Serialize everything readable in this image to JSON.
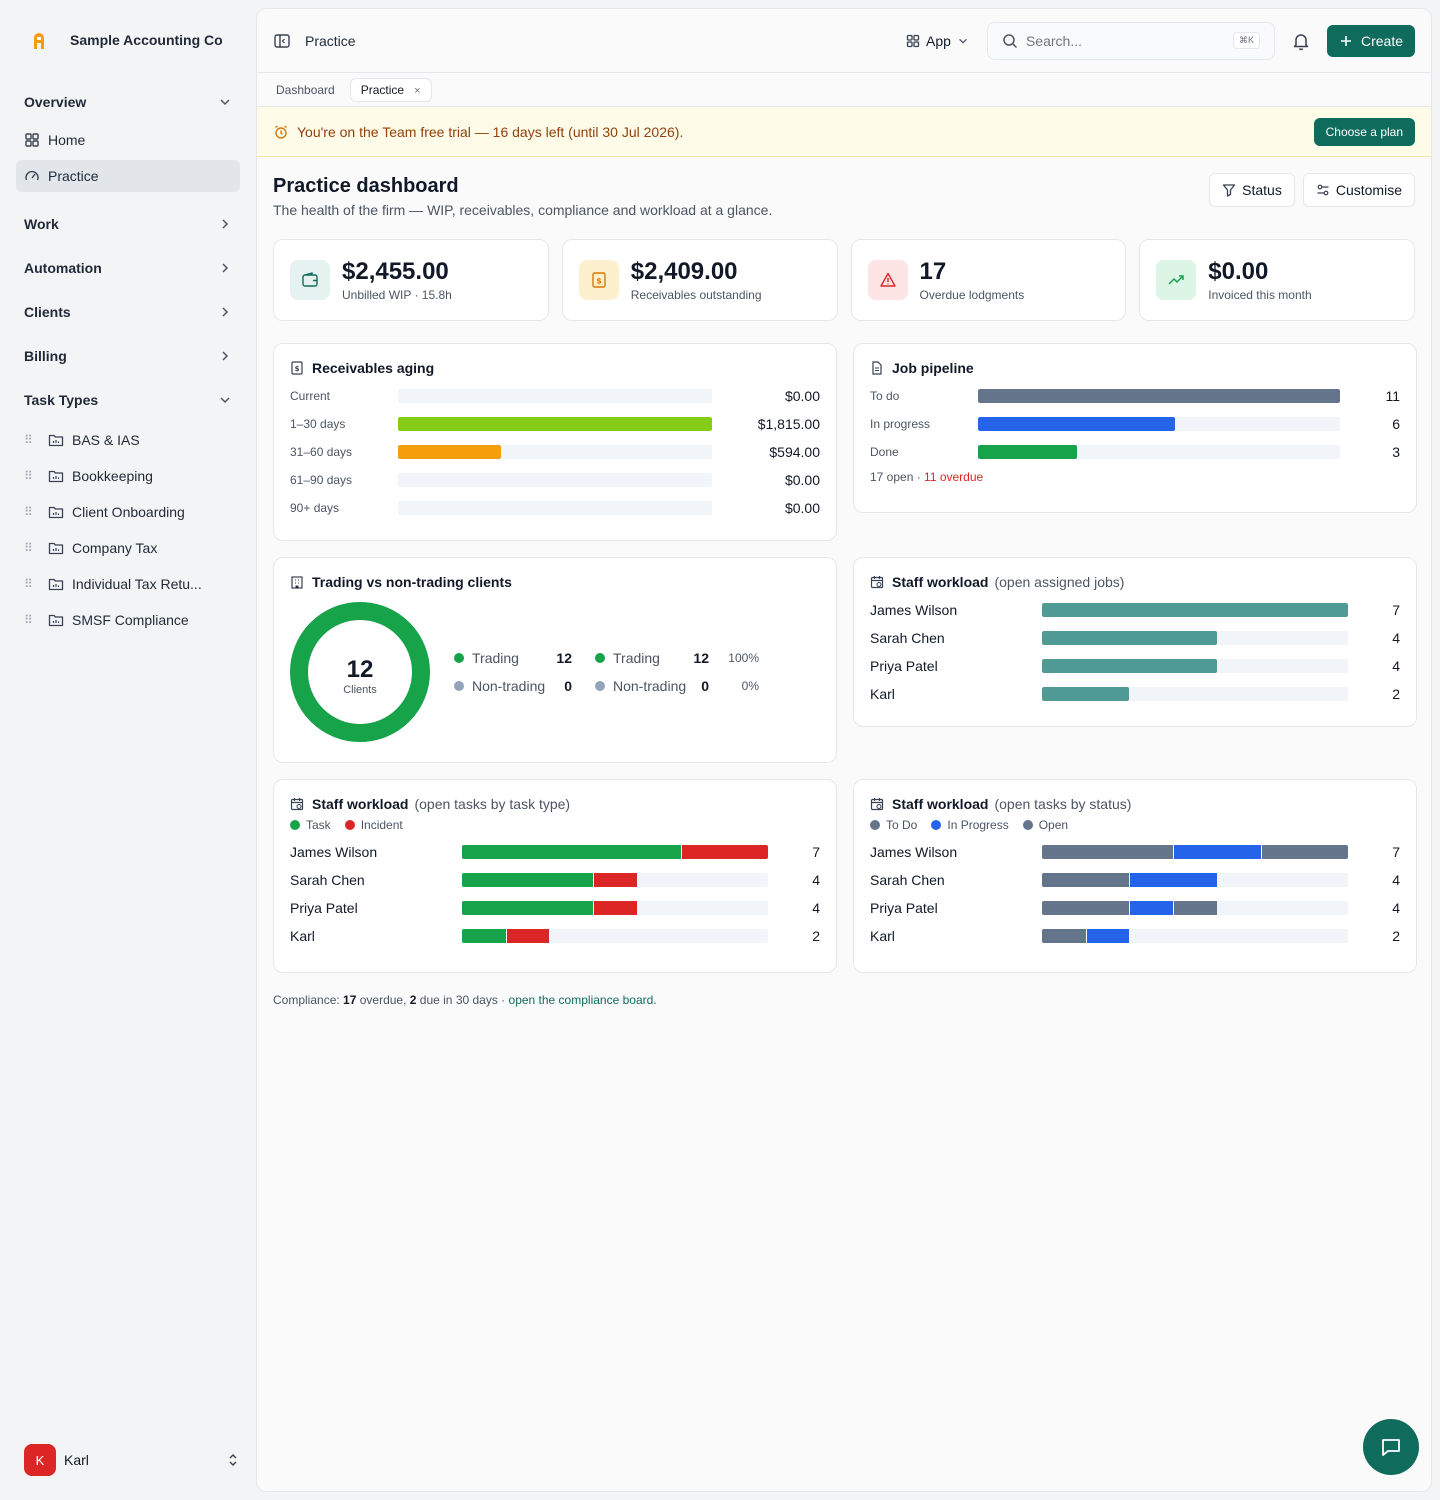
{
  "sidebar": {
    "org_name": "Sample Accounting Co",
    "overview_label": "Overview",
    "home_label": "Home",
    "practice_label": "Practice",
    "work_label": "Work",
    "automation_label": "Automation",
    "clients_label": "Clients",
    "billing_label": "Billing",
    "task_types_label": "Task Types",
    "task_types": [
      "BAS & IAS",
      "Bookkeeping",
      "Client Onboarding",
      "Company Tax",
      "Individual Tax Retu...",
      "SMSF Compliance"
    ],
    "user_initial": "K",
    "user_name": "Karl"
  },
  "topbar": {
    "title": "Practice",
    "app_label": "App",
    "search_placeholder": "Search...",
    "search_shortcut": "⌘K",
    "create_label": "Create"
  },
  "tabs": [
    {
      "label": "Dashboard"
    },
    {
      "label": "Practice",
      "close": "×"
    }
  ],
  "trial": {
    "text": "You're on the Team free trial — 16 days left (until 30 Jul 2026).",
    "button": "Choose a plan"
  },
  "page": {
    "title": "Practice dashboard",
    "subtitle": "The health of the firm — WIP, receivables, compliance and workload at a glance.",
    "status_button": "Status",
    "customise_button": "Customise"
  },
  "kpis": [
    {
      "value": "$2,455.00",
      "label": "Unbilled WIP · 15.8h",
      "icon": "wallet-icon"
    },
    {
      "value": "$2,409.00",
      "label": "Receivables outstanding",
      "icon": "receipt-icon"
    },
    {
      "value": "17",
      "label": "Overdue lodgments",
      "icon": "warning-icon"
    },
    {
      "value": "$0.00",
      "label": "Invoiced this month",
      "icon": "trending-up-icon"
    }
  ],
  "receivables": {
    "title": "Receivables aging",
    "rows": [
      {
        "label": "Current",
        "amount": "$0.00",
        "value": 0
      },
      {
        "label": "1–30 days",
        "amount": "$1,815.00",
        "value": 1815
      },
      {
        "label": "31–60 days",
        "amount": "$594.00",
        "value": 594
      },
      {
        "label": "61–90 days",
        "amount": "$0.00",
        "value": 0
      },
      {
        "label": "90+ days",
        "amount": "$0.00",
        "value": 0
      }
    ],
    "max": 1815,
    "colors": [
      "#84cc16",
      "#84cc16",
      "#f59e0b",
      "#84cc16",
      "#84cc16"
    ]
  },
  "pipeline": {
    "title": "Job pipeline",
    "rows": [
      {
        "label": "To do",
        "value": 11,
        "color": "#64748b"
      },
      {
        "label": "In progress",
        "value": 6,
        "color": "#2563eb"
      },
      {
        "label": "Done",
        "value": 3,
        "color": "#16a34a"
      }
    ],
    "max": 11,
    "open_text": "17 open · ",
    "overdue_text": "11 overdue"
  },
  "trading": {
    "title": "Trading vs non-trading clients",
    "total": "12",
    "total_label": "Clients",
    "trading_label": "Trading",
    "trading_count": "12",
    "trading_pct": "100%",
    "nontrading_label": "Non-trading",
    "nontrading_count": "0",
    "nontrading_pct": "0%",
    "trading_color": "#16a34a",
    "nontrading_color": "#94a3b8"
  },
  "workload_jobs": {
    "title": "Staff workload",
    "subtitle": "(open assigned jobs)",
    "color": "#4f9a94",
    "max": 7,
    "rows": [
      {
        "name": "James Wilson",
        "value": 7
      },
      {
        "name": "Sarah Chen",
        "value": 4
      },
      {
        "name": "Priya Patel",
        "value": 4
      },
      {
        "name": "Karl",
        "value": 2
      }
    ]
  },
  "workload_type": {
    "title": "Staff workload",
    "subtitle": "(open tasks by task type)",
    "legend": [
      {
        "label": "Task",
        "color": "#16a34a"
      },
      {
        "label": "Incident",
        "color": "#dc2626"
      }
    ],
    "max": 7,
    "rows": [
      {
        "name": "James Wilson",
        "total": 7,
        "segments": [
          5,
          2
        ]
      },
      {
        "name": "Sarah Chen",
        "total": 4,
        "segments": [
          3,
          1
        ]
      },
      {
        "name": "Priya Patel",
        "total": 4,
        "segments": [
          3,
          1
        ]
      },
      {
        "name": "Karl",
        "total": 2,
        "segments": [
          1,
          1
        ]
      }
    ]
  },
  "workload_status": {
    "title": "Staff workload",
    "subtitle": "(open tasks by status)",
    "legend": [
      {
        "label": "To Do",
        "color": "#64748b"
      },
      {
        "label": "In Progress",
        "color": "#2563eb"
      },
      {
        "label": "Open",
        "color": "#64748b"
      }
    ],
    "max": 7,
    "rows": [
      {
        "name": "James Wilson",
        "total": 7,
        "segments": [
          3,
          2,
          2
        ]
      },
      {
        "name": "Sarah Chen",
        "total": 4,
        "segments": [
          2,
          2,
          0
        ]
      },
      {
        "name": "Priya Patel",
        "total": 4,
        "segments": [
          2,
          1,
          1
        ]
      },
      {
        "name": "Karl",
        "total": 2,
        "segments": [
          1,
          1,
          0
        ]
      }
    ]
  },
  "footer": {
    "prefix": "Compliance: ",
    "overdue_count": "17",
    "overdue_text": " overdue, ",
    "due_count": "2",
    "due_text": " due in 30 days · ",
    "link": "open the compliance board."
  }
}
